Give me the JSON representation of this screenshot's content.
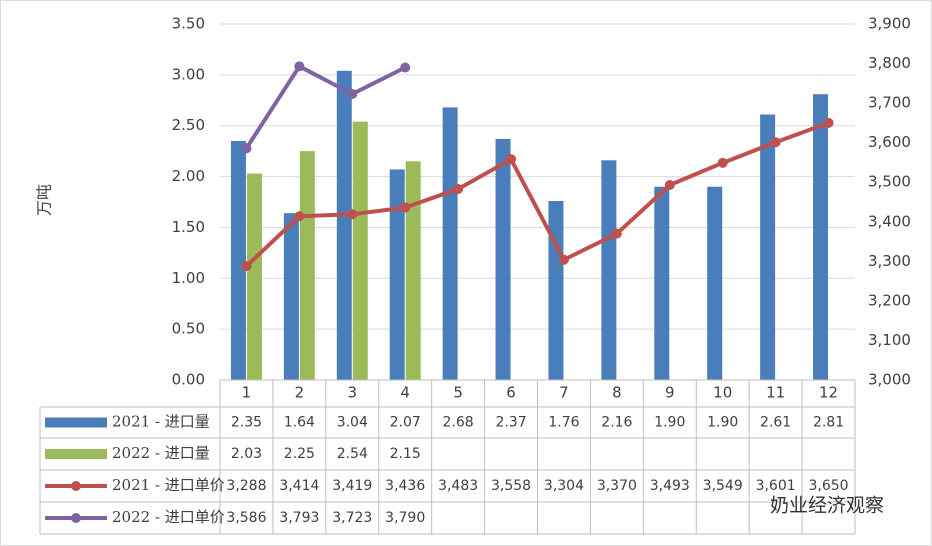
{
  "chart_data": {
    "type": "bar_line_table",
    "y_label": "万吨",
    "categories": [
      "1",
      "2",
      "3",
      "4",
      "5",
      "6",
      "7",
      "8",
      "9",
      "10",
      "11",
      "12"
    ],
    "series": [
      {
        "name": "2021 - 进口量",
        "type": "bar",
        "color": "#4a7ebb",
        "values": [
          2.35,
          1.64,
          3.04,
          2.07,
          2.68,
          2.37,
          1.76,
          2.16,
          1.9,
          1.9,
          2.61,
          2.81
        ],
        "value_labels": [
          "2.35",
          "1.64",
          "3.04",
          "2.07",
          "2.68",
          "2.37",
          "1.76",
          "2.16",
          "1.90",
          "1.90",
          "2.61",
          "2.81"
        ]
      },
      {
        "name": "2022 - 进口量",
        "type": "bar",
        "color": "#9bbb59",
        "values": [
          2.03,
          2.25,
          2.54,
          2.15,
          null,
          null,
          null,
          null,
          null,
          null,
          null,
          null
        ],
        "value_labels": [
          "2.03",
          "2.25",
          "2.54",
          "2.15",
          null,
          null,
          null,
          null,
          null,
          null,
          null,
          null
        ]
      },
      {
        "name": "2021 - 进口单价",
        "type": "line",
        "axis": "y2",
        "color": "#c0504d",
        "values": [
          3288,
          3414,
          3419,
          3436,
          3483,
          3558,
          3304,
          3370,
          3493,
          3549,
          3601,
          3650
        ],
        "value_labels": [
          "3,288",
          "3,414",
          "3,419",
          "3,436",
          "3,483",
          "3,558",
          "3,304",
          "3,370",
          "3,493",
          "3,549",
          "3,601",
          "3,650"
        ]
      },
      {
        "name": "2022 - 进口单价",
        "type": "line",
        "axis": "y2",
        "color": "#8064a2",
        "values": [
          3586,
          3793,
          3723,
          3790,
          null,
          null,
          null,
          null,
          null,
          null,
          null,
          null
        ],
        "value_labels": [
          "3,586",
          "3,793",
          "3,723",
          "3,790",
          null,
          null,
          null,
          null,
          null,
          null,
          null,
          null
        ]
      }
    ],
    "ylim": [
      0,
      3.5
    ],
    "yticks": [
      {
        "value": 0,
        "label": "0.00"
      },
      {
        "value": 0.5,
        "label": "0.50"
      },
      {
        "value": 1,
        "label": "1.00"
      },
      {
        "value": 1.5,
        "label": "1.50"
      },
      {
        "value": 2,
        "label": "2.00"
      },
      {
        "value": 2.5,
        "label": "2.50"
      },
      {
        "value": 3,
        "label": "3.00"
      },
      {
        "value": 3.5,
        "label": "3.50"
      }
    ],
    "y2lim": [
      3000,
      3900
    ],
    "y2ticks": [
      {
        "value": 3000,
        "label": "3,000"
      },
      {
        "value": 3100,
        "label": "3,100"
      },
      {
        "value": 3200,
        "label": "3,200"
      },
      {
        "value": 3300,
        "label": "3,300"
      },
      {
        "value": 3400,
        "label": "3,400"
      },
      {
        "value": 3500,
        "label": "3,500"
      },
      {
        "value": 3600,
        "label": "3,600"
      },
      {
        "value": 3700,
        "label": "3,700"
      },
      {
        "value": 3800,
        "label": "3,800"
      },
      {
        "value": 3900,
        "label": "3,900"
      }
    ],
    "grid": true,
    "watermark": "奶业经济观察"
  }
}
